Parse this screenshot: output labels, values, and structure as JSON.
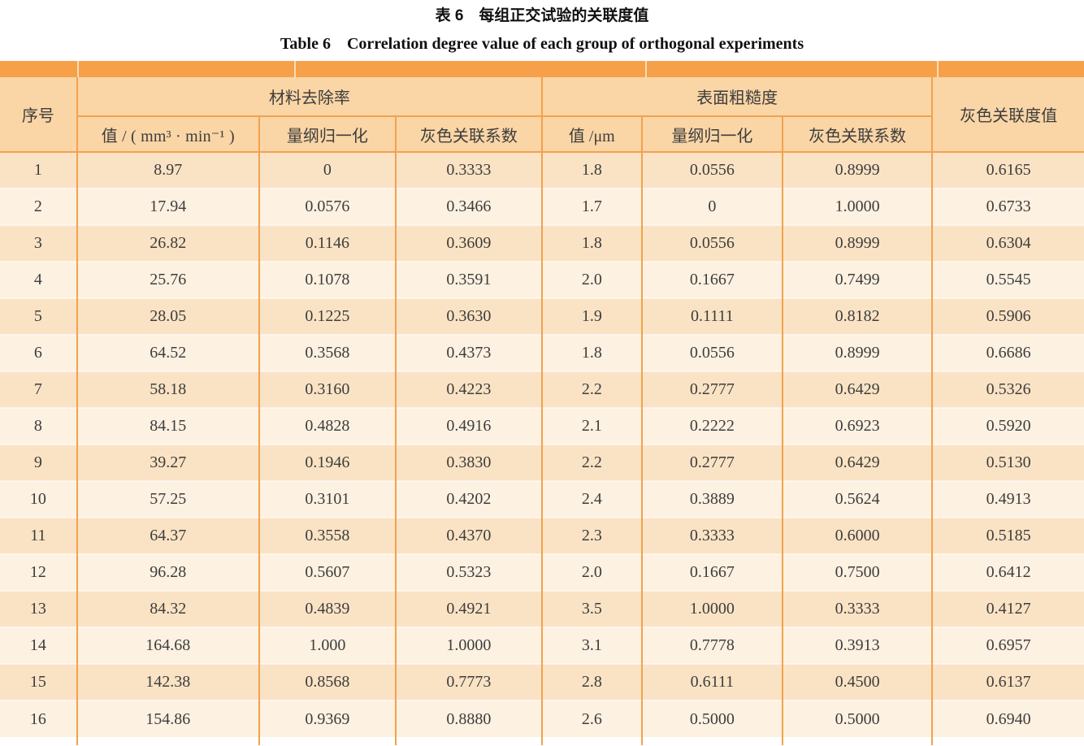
{
  "title": {
    "zh": "表 6　每组正交试验的关联度值",
    "en": "Table 6　Correlation degree value of each group of orthogonal experiments"
  },
  "table": {
    "header": {
      "index": "序号",
      "group1_label": "材料去除率",
      "group1_sub": [
        "值 / ( mm³ · min⁻¹ )",
        "量纲归一化",
        "灰色关联系数"
      ],
      "group2_label": "表面粗糙度",
      "group2_sub": [
        "值 /μm",
        "量纲归一化",
        "灰色关联系数"
      ],
      "grey": "灰色关联度值"
    },
    "rows": [
      [
        "1",
        "8.97",
        "0",
        "0.3333",
        "1.8",
        "0.0556",
        "0.8999",
        "0.6165"
      ],
      [
        "2",
        "17.94",
        "0.0576",
        "0.3466",
        "1.7",
        "0",
        "1.0000",
        "0.6733"
      ],
      [
        "3",
        "26.82",
        "0.1146",
        "0.3609",
        "1.8",
        "0.0556",
        "0.8999",
        "0.6304"
      ],
      [
        "4",
        "25.76",
        "0.1078",
        "0.3591",
        "2.0",
        "0.1667",
        "0.7499",
        "0.5545"
      ],
      [
        "5",
        "28.05",
        "0.1225",
        "0.3630",
        "1.9",
        "0.1111",
        "0.8182",
        "0.5906"
      ],
      [
        "6",
        "64.52",
        "0.3568",
        "0.4373",
        "1.8",
        "0.0556",
        "0.8999",
        "0.6686"
      ],
      [
        "7",
        "58.18",
        "0.3160",
        "0.4223",
        "2.2",
        "0.2777",
        "0.6429",
        "0.5326"
      ],
      [
        "8",
        "84.15",
        "0.4828",
        "0.4916",
        "2.1",
        "0.2222",
        "0.6923",
        "0.5920"
      ],
      [
        "9",
        "39.27",
        "0.1946",
        "0.3830",
        "2.2",
        "0.2777",
        "0.6429",
        "0.5130"
      ],
      [
        "10",
        "57.25",
        "0.3101",
        "0.4202",
        "2.4",
        "0.3889",
        "0.5624",
        "0.4913"
      ],
      [
        "11",
        "64.37",
        "0.3558",
        "0.4370",
        "2.3",
        "0.3333",
        "0.6000",
        "0.5185"
      ],
      [
        "12",
        "96.28",
        "0.5607",
        "0.5323",
        "2.0",
        "0.1667",
        "0.7500",
        "0.6412"
      ],
      [
        "13",
        "84.32",
        "0.4839",
        "0.4921",
        "3.5",
        "1.0000",
        "0.3333",
        "0.4127"
      ],
      [
        "14",
        "164.68",
        "1.000",
        "1.0000",
        "3.1",
        "0.7778",
        "0.3913",
        "0.6957"
      ],
      [
        "15",
        "142.38",
        "0.8568",
        "0.7773",
        "2.8",
        "0.6111",
        "0.4500",
        "0.6137"
      ],
      [
        "16",
        "154.86",
        "0.9369",
        "0.8880",
        "2.6",
        "0.5000",
        "0.5000",
        "0.6940"
      ]
    ]
  },
  "colors": {
    "band_orange": "#F6A04A",
    "border_orange": "#F2A24E",
    "header_bg": "#FAD5A6",
    "row_odd_bg": "#FAE3C4",
    "row_even_bg": "#FDF1E1",
    "band_separator": "#FBDCB4",
    "text_color": "#3D3D3D"
  }
}
